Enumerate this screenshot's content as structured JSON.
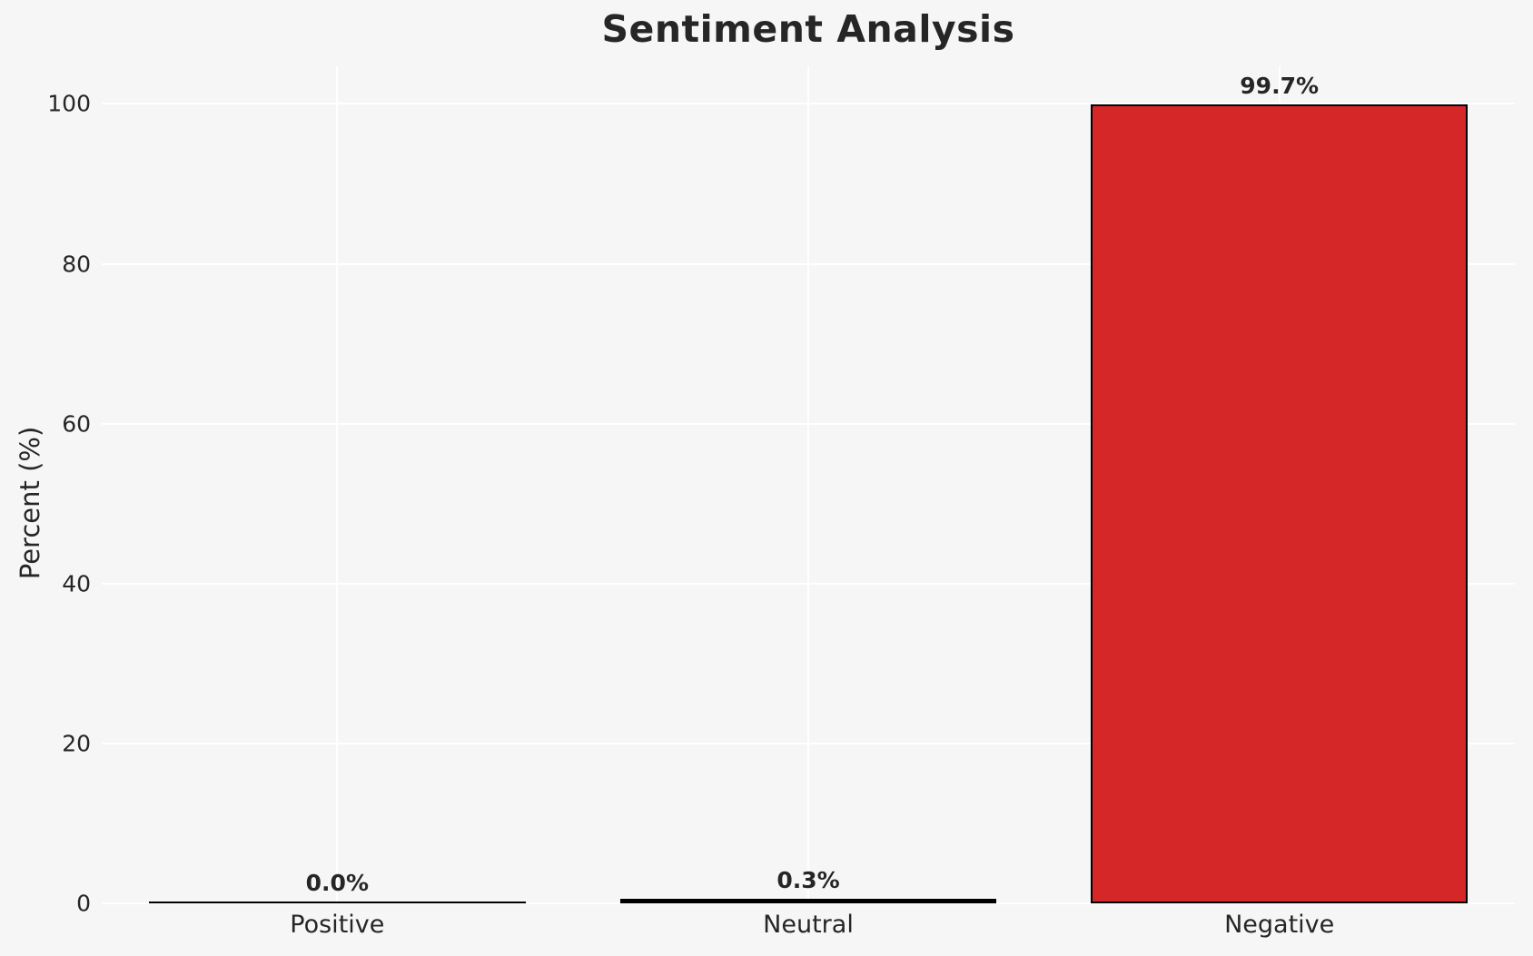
{
  "chart_data": {
    "type": "bar",
    "title": "Sentiment Analysis",
    "xlabel": "",
    "ylabel": "Percent (%)",
    "categories": [
      "Positive",
      "Neutral",
      "Negative"
    ],
    "values": [
      0.0,
      0.3,
      99.7
    ],
    "value_labels": [
      "0.0%",
      "0.3%",
      "99.7%"
    ],
    "yticks": [
      0,
      20,
      40,
      60,
      80,
      100
    ],
    "ylim": [
      0,
      104.7
    ],
    "grid": true,
    "legend": false,
    "bar_width_fraction": 0.8,
    "colors": {
      "background": "#f6f6f6",
      "grid": "#ffffff",
      "text": "#262626",
      "bar_fills": [
        "#1a1a1a",
        "#111111",
        "#d62728"
      ],
      "bar_edge": "#000000"
    }
  }
}
